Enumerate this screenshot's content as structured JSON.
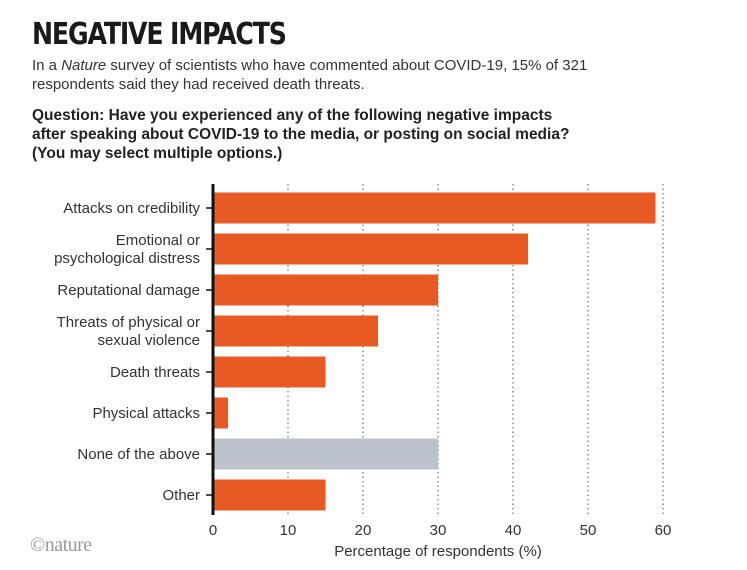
{
  "header": {
    "title": "NEGATIVE IMPACTS",
    "subtitle_pre": "In a ",
    "subtitle_em": "Nature",
    "subtitle_post": " survey of scientists who have commented about COVID-19, 15% of 321 respondents said they had received death threats.",
    "question_lines": [
      "Question: Have you experienced any of the following negative impacts",
      "after speaking about COVID-19 to the media, or posting on social media?",
      "(You may select multiple options.)"
    ]
  },
  "footer": {
    "logo": "©nature"
  },
  "colors": {
    "bar": "#E85A24",
    "bar_neutral": "#BCC3CC",
    "axis": "#111111",
    "grid": "#555555"
  },
  "chart_data": {
    "type": "bar",
    "orientation": "horizontal",
    "title": "Have you experienced any of the following negative impacts after speaking about COVID-19 to the media, or posting on social media?",
    "xlabel": "Percentage of respondents (%)",
    "ylabel": "",
    "xlim": [
      0,
      60
    ],
    "xticks": [
      0,
      10,
      20,
      30,
      40,
      50,
      60
    ],
    "grid": "vertical dotted",
    "categories": [
      [
        "Attacks on credibility"
      ],
      [
        "Emotional or",
        "psychological distress"
      ],
      [
        "Reputational damage"
      ],
      [
        "Threats of physical or",
        "sexual violence"
      ],
      [
        "Death threats"
      ],
      [
        "Physical attacks"
      ],
      [
        "None of the above"
      ],
      [
        "Other"
      ]
    ],
    "values": [
      59,
      42,
      30,
      22,
      15,
      2,
      30,
      15
    ],
    "highlight": [
      "primary",
      "primary",
      "primary",
      "primary",
      "primary",
      "primary",
      "neutral",
      "primary"
    ]
  }
}
